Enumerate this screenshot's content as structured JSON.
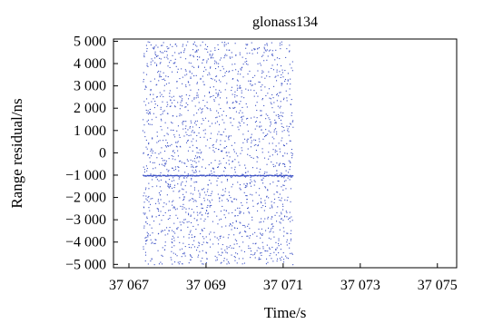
{
  "chart_data": {
    "type": "scatter",
    "title": "glonass134",
    "xlabel": "Time/s",
    "ylabel": "Range residual/ns",
    "xlim": [
      37066.6,
      37075.5
    ],
    "ylim": [
      -5150,
      5100
    ],
    "xticks": [
      37067,
      37069,
      37071,
      37073,
      37075
    ],
    "xtick_labels": [
      "37 067",
      "37 069",
      "37 071",
      "37 073",
      "37 075"
    ],
    "yticks": [
      5000,
      4000,
      3000,
      2000,
      1000,
      0,
      -1000,
      -2000,
      -3000,
      -4000,
      -5000
    ],
    "ytick_labels": [
      "5 000",
      "4 000",
      "3 000",
      "2 000",
      "1 000",
      "0",
      "−1 000",
      "−2 000",
      "−3 000",
      "−4 000",
      "−5 000"
    ],
    "grid": false,
    "series": [
      {
        "color": "#3a4fc4",
        "noise_points": {
          "x_range": [
            37067.35,
            37071.25
          ],
          "y_range": [
            -5000,
            5000
          ],
          "count": 1900,
          "distribution": "uniform"
        },
        "signal_points": {
          "x_range": [
            37067.35,
            37071.25
          ],
          "y": -1000,
          "count": 160
        }
      }
    ]
  }
}
